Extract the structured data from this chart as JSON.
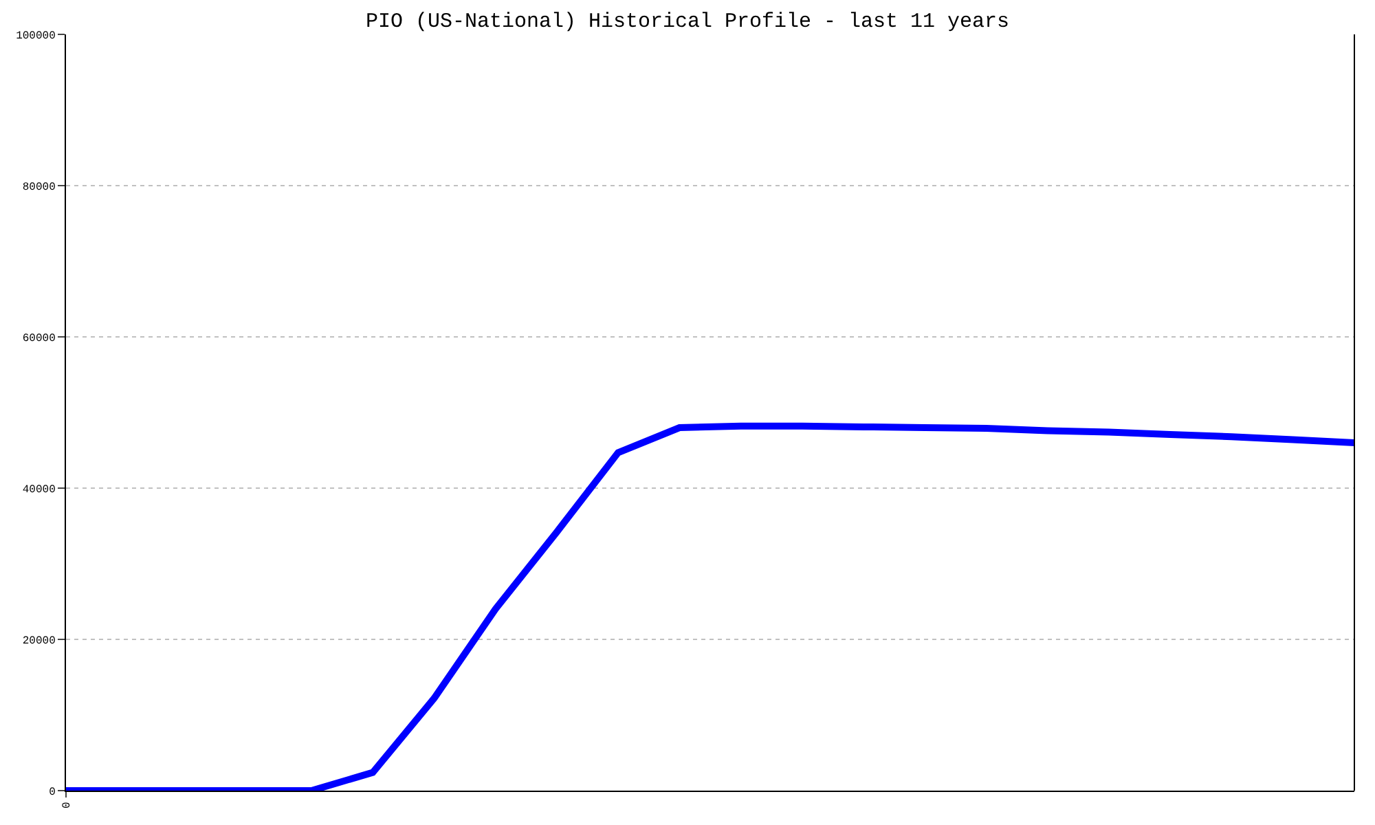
{
  "chart_data": {
    "type": "line",
    "title": "PIO (US-National) Historical Profile - last 11 years",
    "categories": [
      "0",
      null,
      null,
      null,
      null,
      null,
      null,
      null,
      null,
      null,
      null,
      null,
      null,
      null,
      null,
      null,
      null,
      null,
      null,
      null,
      null,
      null
    ],
    "series": [
      {
        "color": "#0000ff",
        "values": [
          0,
          0,
          0,
          0,
          0,
          2400,
          12200,
          24000,
          34200,
          44700,
          48000,
          48200,
          48200,
          48100,
          48000,
          47900,
          47600,
          47400,
          47100,
          46800,
          46400,
          46000
        ]
      }
    ],
    "ylim": [
      0,
      100000
    ],
    "yticks": [
      0,
      20000,
      40000,
      60000,
      80000,
      100000
    ],
    "grid": "y",
    "marker": "none",
    "line_style": "solid"
  }
}
